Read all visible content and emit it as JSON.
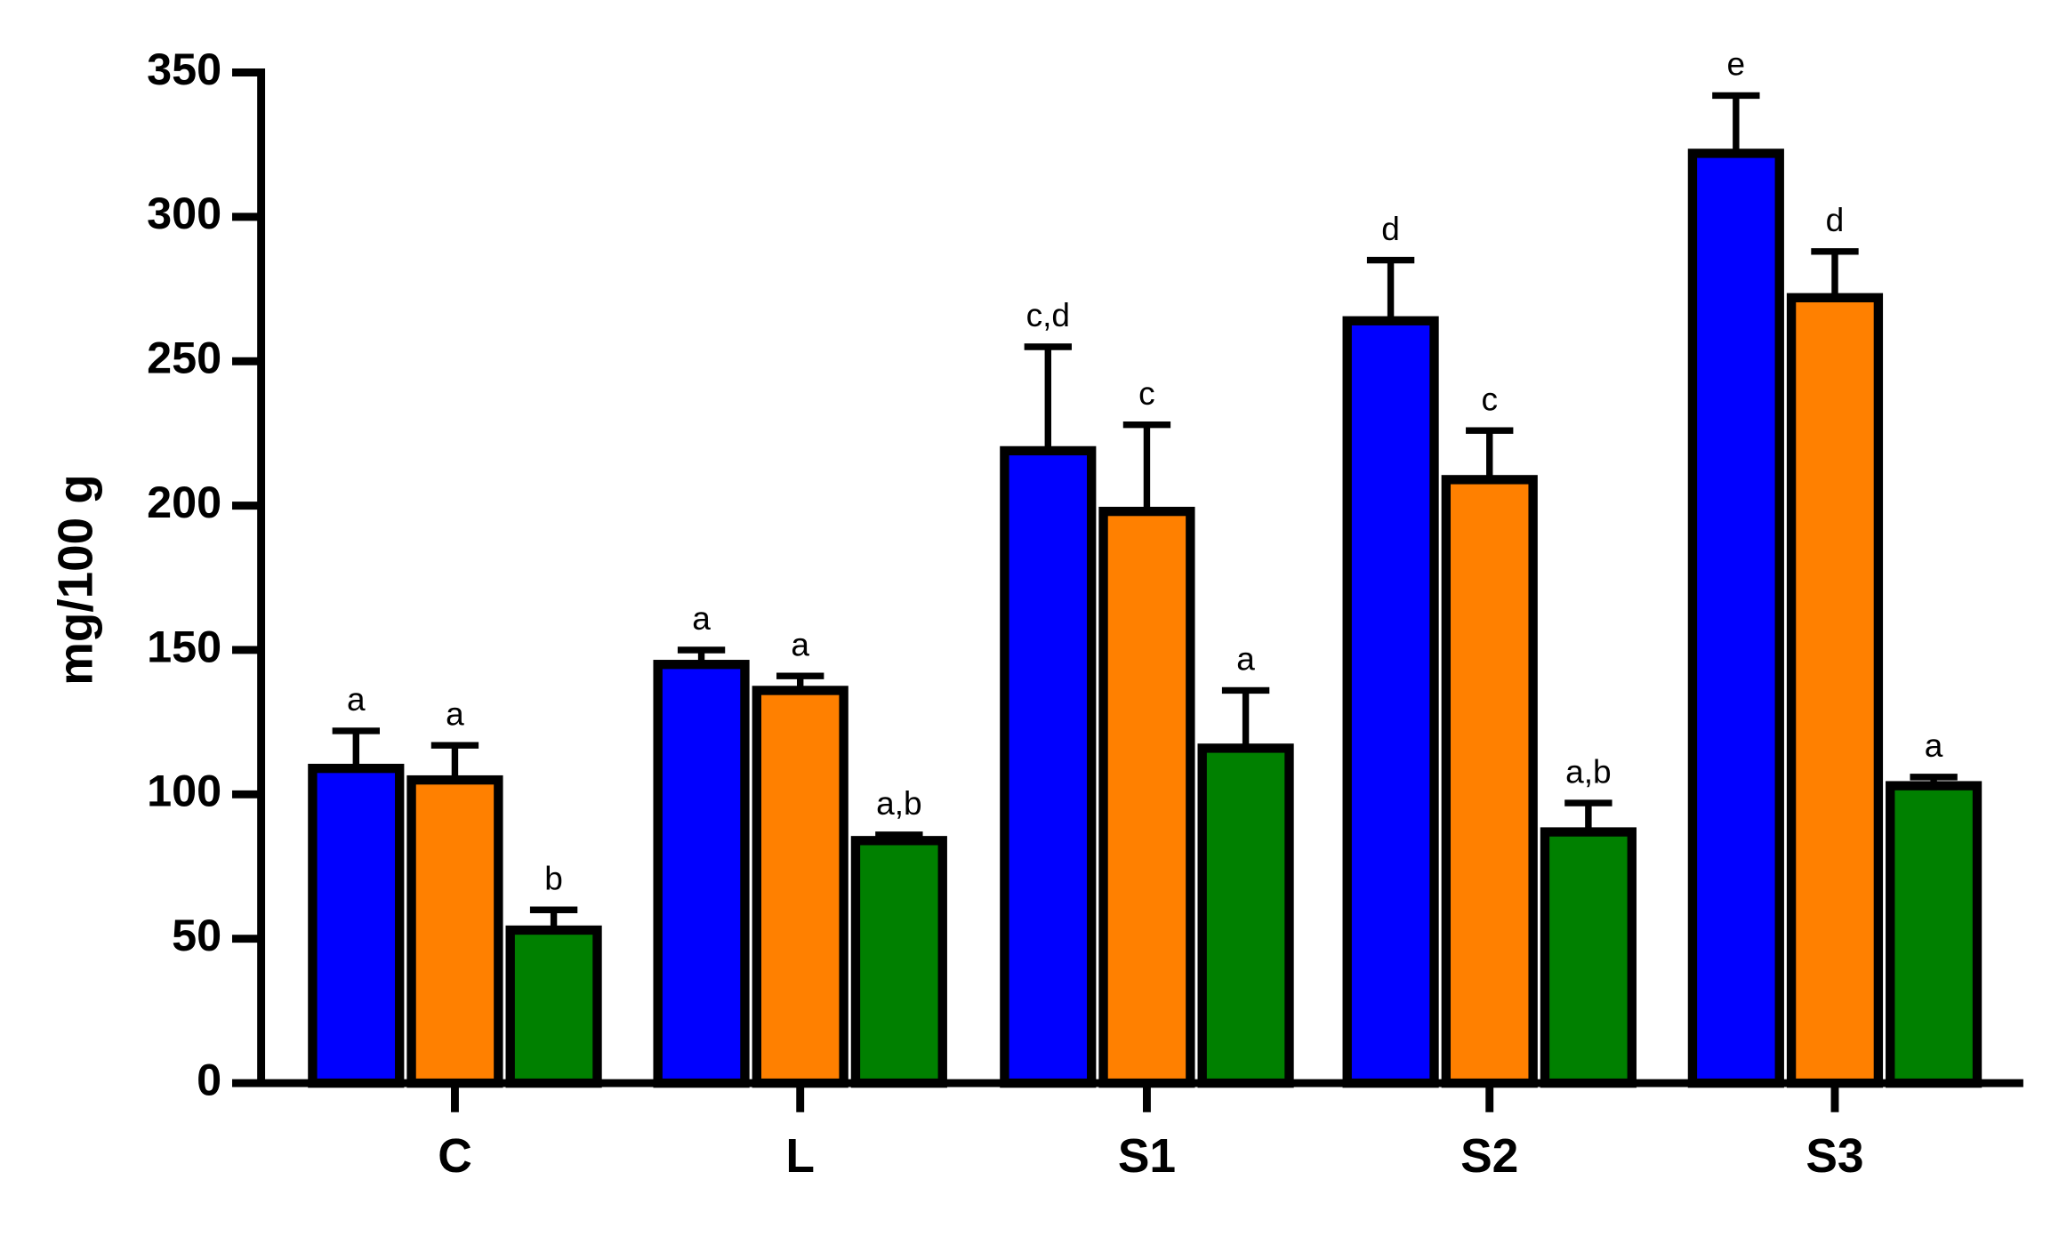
{
  "chart_data": {
    "type": "bar",
    "y_label": "mg/100 g",
    "categories": [
      "C",
      "L",
      "S1",
      "S2",
      "S3"
    ],
    "series": [
      {
        "color": "#0000ff",
        "values": [
          109,
          145,
          219,
          264,
          322
        ],
        "errors": [
          13,
          5,
          36,
          21,
          20
        ],
        "labels": [
          "a",
          "a",
          "c,d",
          "d",
          "e"
        ]
      },
      {
        "color": "#ff8000",
        "values": [
          105,
          136,
          198,
          209,
          272
        ],
        "errors": [
          12,
          5,
          30,
          17,
          16
        ],
        "labels": [
          "a",
          "a",
          "c",
          "c",
          "d"
        ]
      },
      {
        "color": "#008000",
        "values": [
          53,
          84,
          116,
          87,
          103
        ],
        "errors": [
          7,
          2,
          20,
          10,
          3
        ],
        "labels": [
          "b",
          "a,b",
          "a",
          "a,b",
          "a"
        ]
      }
    ],
    "ylim": [
      0,
      350
    ],
    "yticks": [
      0,
      50,
      100,
      150,
      200,
      250,
      300,
      350
    ],
    "grid": false
  }
}
